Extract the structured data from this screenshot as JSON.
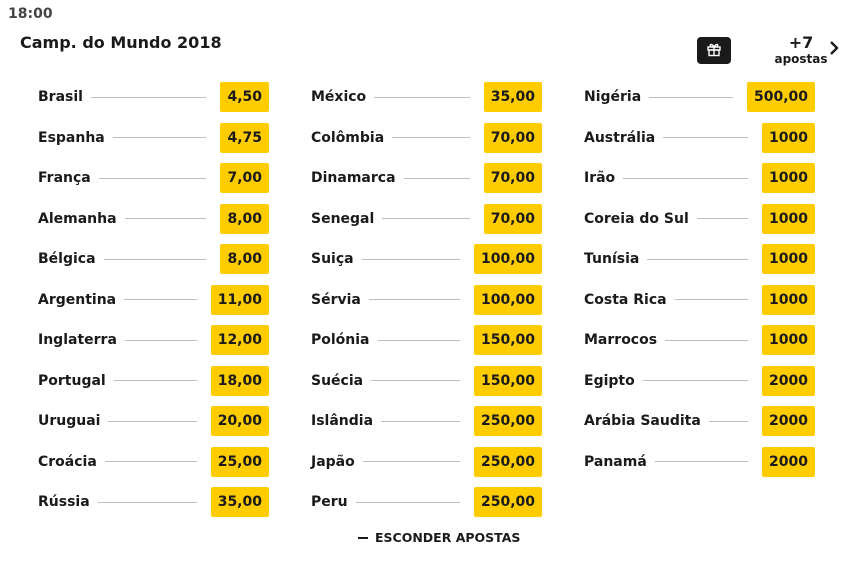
{
  "header": {
    "time": "18:00",
    "event_title": "Camp. do Mundo 2018",
    "more_bets_count": "+7",
    "more_bets_label": "apostas"
  },
  "icons": {
    "gift": "gift-icon",
    "chevron": "chevron-right-icon",
    "collapse": "minus-icon"
  },
  "colors": {
    "odd_bg": "#ffcc00",
    "gift_bg": "#1a1a1a"
  },
  "columns": [
    {
      "rows": [
        {
          "team": "Brasil",
          "odd": "4,50"
        },
        {
          "team": "Espanha",
          "odd": "4,75"
        },
        {
          "team": "França",
          "odd": "7,00"
        },
        {
          "team": "Alemanha",
          "odd": "8,00"
        },
        {
          "team": "Bélgica",
          "odd": "8,00"
        },
        {
          "team": "Argentina",
          "odd": "11,00"
        },
        {
          "team": "Inglaterra",
          "odd": "12,00"
        },
        {
          "team": "Portugal",
          "odd": "18,00"
        },
        {
          "team": "Uruguai",
          "odd": "20,00"
        },
        {
          "team": "Croácia",
          "odd": "25,00"
        },
        {
          "team": "Rússia",
          "odd": "35,00"
        }
      ]
    },
    {
      "rows": [
        {
          "team": "México",
          "odd": "35,00"
        },
        {
          "team": "Colômbia",
          "odd": "70,00"
        },
        {
          "team": "Dinamarca",
          "odd": "70,00"
        },
        {
          "team": "Senegal",
          "odd": "70,00"
        },
        {
          "team": "Suiça",
          "odd": "100,00"
        },
        {
          "team": "Sérvia",
          "odd": "100,00"
        },
        {
          "team": "Polónia",
          "odd": "150,00"
        },
        {
          "team": "Suécia",
          "odd": "150,00"
        },
        {
          "team": "Islândia",
          "odd": "250,00"
        },
        {
          "team": "Japão",
          "odd": "250,00"
        },
        {
          "team": "Peru",
          "odd": "250,00"
        }
      ]
    },
    {
      "rows": [
        {
          "team": "Nigéria",
          "odd": "500,00"
        },
        {
          "team": "Austrália",
          "odd": "1000"
        },
        {
          "team": "Irão",
          "odd": "1000"
        },
        {
          "team": "Coreia do Sul",
          "odd": "1000"
        },
        {
          "team": "Tunísia",
          "odd": "1000"
        },
        {
          "team": "Costa Rica",
          "odd": "1000"
        },
        {
          "team": "Marrocos",
          "odd": "1000"
        },
        {
          "team": "Egipto",
          "odd": "2000"
        },
        {
          "team": "Arábia Saudita",
          "odd": "2000"
        },
        {
          "team": "Panamá",
          "odd": "2000"
        }
      ]
    }
  ],
  "footer": {
    "hide_label": "ESCONDER APOSTAS"
  }
}
